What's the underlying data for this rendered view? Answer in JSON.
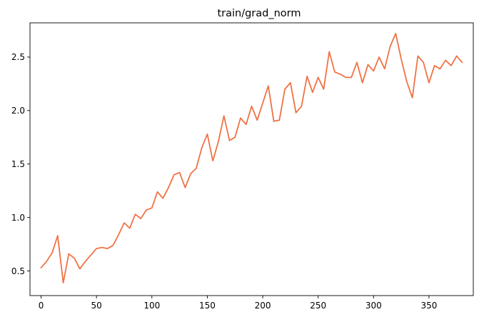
{
  "chart_data": {
    "type": "line",
    "title": "train/grad_norm",
    "xlabel": "",
    "ylabel": "",
    "xlim": [
      -10,
      390
    ],
    "ylim": [
      0.27,
      2.82
    ],
    "x_ticks": [
      0,
      50,
      100,
      150,
      200,
      250,
      300,
      350
    ],
    "x_tick_labels": [
      "0",
      "50",
      "100",
      "150",
      "200",
      "250",
      "300",
      "350"
    ],
    "y_ticks": [
      0.5,
      1.0,
      1.5,
      2.0,
      2.5
    ],
    "y_tick_labels": [
      "0.5",
      "1.0",
      "1.5",
      "2.0",
      "2.5"
    ],
    "grid": false,
    "series": [
      {
        "color": "#f07244",
        "x": [
          0,
          5,
          10,
          15,
          20,
          25,
          30,
          35,
          40,
          45,
          50,
          55,
          60,
          65,
          70,
          75,
          80,
          85,
          90,
          95,
          100,
          105,
          110,
          115,
          120,
          125,
          130,
          135,
          140,
          145,
          150,
          155,
          160,
          165,
          170,
          175,
          180,
          185,
          190,
          195,
          200,
          205,
          210,
          215,
          220,
          225,
          230,
          235,
          240,
          245,
          250,
          255,
          260,
          265,
          270,
          275,
          280,
          285,
          290,
          295,
          300,
          305,
          310,
          315,
          320,
          325,
          330,
          335,
          340,
          345,
          350,
          355,
          360,
          365,
          370,
          375,
          380
        ],
        "y": [
          0.53,
          0.59,
          0.67,
          0.83,
          0.39,
          0.66,
          0.62,
          0.52,
          0.59,
          0.65,
          0.71,
          0.72,
          0.71,
          0.74,
          0.84,
          0.95,
          0.9,
          1.03,
          0.99,
          1.07,
          1.09,
          1.24,
          1.18,
          1.28,
          1.4,
          1.42,
          1.28,
          1.41,
          1.46,
          1.65,
          1.78,
          1.53,
          1.71,
          1.95,
          1.72,
          1.75,
          1.93,
          1.87,
          2.04,
          1.91,
          2.07,
          2.23,
          1.9,
          1.91,
          2.2,
          2.26,
          1.98,
          2.04,
          2.32,
          2.17,
          2.31,
          2.2,
          2.55,
          2.36,
          2.34,
          2.31,
          2.31,
          2.45,
          2.26,
          2.43,
          2.37,
          2.5,
          2.39,
          2.6,
          2.72,
          2.48,
          2.27,
          2.12,
          2.51,
          2.45,
          2.26,
          2.42,
          2.39,
          2.47,
          2.42,
          2.51,
          2.45
        ]
      }
    ]
  }
}
